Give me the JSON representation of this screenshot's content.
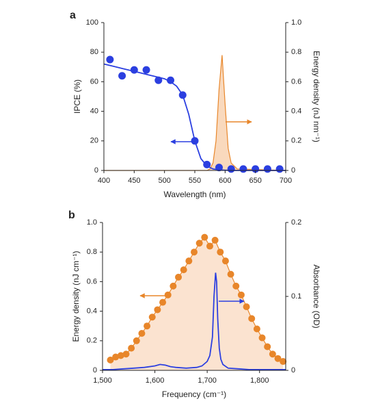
{
  "chart_data": [
    {
      "type": "combo",
      "panel_label": "a",
      "x_label": "Wavelength (nm)",
      "y_label": "IPCE (%)",
      "y2_label": "Energy density (nJ nm⁻¹)",
      "xlim": [
        400,
        700
      ],
      "xticks": [
        400,
        450,
        500,
        550,
        600,
        650,
        700
      ],
      "ylim": [
        0,
        100
      ],
      "yticks": [
        0,
        20,
        40,
        60,
        80,
        100
      ],
      "y2lim": [
        0,
        1
      ],
      "y2ticks": [
        0,
        {
          "value": 0.2,
          "label": "0.2"
        },
        {
          "value": 0.4,
          "label": "0.4"
        },
        {
          "value": 0.6,
          "label": "0.6"
        },
        {
          "value": 0.8,
          "label": "0.8"
        },
        {
          "value": 1,
          "label": "1.0"
        }
      ],
      "series": [
        {
          "kind": "area",
          "axis": "y2",
          "color": "#e8862a",
          "fill": "#f9d9bd",
          "x": [
            400,
            560,
            570,
            575,
            580,
            585,
            590,
            595,
            600,
            605,
            610,
            620,
            700
          ],
          "values": [
            0,
            0,
            0,
            0.01,
            0.05,
            0.2,
            0.55,
            0.78,
            0.45,
            0.15,
            0.05,
            0.01,
            0
          ]
        },
        {
          "kind": "line",
          "color": "#2b3fe0",
          "x": [
            400,
            410,
            420,
            430,
            440,
            450,
            460,
            470,
            480,
            490,
            500,
            510,
            520,
            530,
            540,
            550,
            560,
            570,
            580,
            590,
            600,
            610,
            620,
            630,
            640,
            650,
            660,
            670,
            680,
            690,
            700
          ],
          "values": [
            72,
            71,
            70,
            69,
            68,
            67,
            66,
            65,
            64,
            63,
            62,
            60,
            57,
            51,
            38,
            20,
            8,
            3,
            1,
            0.4,
            0.2,
            0,
            0,
            0,
            0,
            0,
            0,
            0,
            0,
            0,
            0
          ]
        },
        {
          "kind": "scatter",
          "color": "#2b3fe0",
          "x": [
            410,
            430,
            450,
            470,
            490,
            510,
            530,
            550,
            570,
            590,
            610,
            630,
            650,
            670,
            690
          ],
          "values": [
            75,
            64,
            68,
            68,
            61,
            61,
            51,
            20,
            4,
            2,
            1,
            1,
            1,
            1,
            1
          ]
        }
      ]
    },
    {
      "type": "combo",
      "panel_label": "b",
      "x_label": "Frequency (cm⁻¹)",
      "y_label": "Energy density (nJ cm⁻¹)",
      "y2_label": "Absorbance (OD)",
      "xlim": [
        1500,
        1850
      ],
      "xticks": [
        {
          "value": 1500,
          "label": "1,500"
        },
        {
          "value": 1600,
          "label": "1,600"
        },
        {
          "value": 1700,
          "label": "1,700"
        },
        {
          "value": 1800,
          "label": "1,800"
        }
      ],
      "ylim": [
        0,
        1
      ],
      "yticks": [
        0,
        {
          "value": 0.2,
          "label": "0.2"
        },
        {
          "value": 0.4,
          "label": "0.4"
        },
        {
          "value": 0.6,
          "label": "0.6"
        },
        {
          "value": 0.8,
          "label": "0.8"
        },
        {
          "value": 1,
          "label": "1.0"
        }
      ],
      "y2lim": [
        0,
        0.2
      ],
      "y2ticks": [
        0,
        0.1,
        0.2
      ],
      "series": [
        {
          "kind": "scatter-area",
          "color": "#e8862a",
          "fill": "#fbe3d0",
          "x": [
            1515,
            1525,
            1535,
            1545,
            1555,
            1565,
            1575,
            1585,
            1595,
            1605,
            1615,
            1625,
            1635,
            1645,
            1655,
            1665,
            1675,
            1685,
            1695,
            1705,
            1715,
            1725,
            1735,
            1745,
            1755,
            1765,
            1775,
            1785,
            1795,
            1805,
            1815,
            1825,
            1835,
            1845
          ],
          "values": [
            0.07,
            0.09,
            0.1,
            0.11,
            0.15,
            0.2,
            0.25,
            0.3,
            0.36,
            0.41,
            0.46,
            0.51,
            0.57,
            0.63,
            0.68,
            0.74,
            0.8,
            0.86,
            0.9,
            0.84,
            0.88,
            0.8,
            0.74,
            0.65,
            0.57,
            0.51,
            0.43,
            0.35,
            0.28,
            0.22,
            0.16,
            0.11,
            0.08,
            0.06
          ]
        },
        {
          "kind": "line",
          "axis": "y2",
          "color": "#2b3fe0",
          "x": [
            1500,
            1520,
            1540,
            1560,
            1580,
            1600,
            1610,
            1620,
            1630,
            1640,
            1660,
            1680,
            1690,
            1700,
            1705,
            1710,
            1713,
            1716,
            1718,
            1720,
            1723,
            1726,
            1730,
            1740,
            1760,
            1780,
            1800,
            1820,
            1840,
            1850
          ],
          "values": [
            0.001,
            0.001,
            0.002,
            0.003,
            0.004,
            0.006,
            0.008,
            0.007,
            0.005,
            0.004,
            0.003,
            0.004,
            0.006,
            0.012,
            0.02,
            0.045,
            0.1,
            0.132,
            0.12,
            0.07,
            0.03,
            0.015,
            0.008,
            0.003,
            0.002,
            0.001,
            0.001,
            0.001,
            0.001,
            0.001
          ]
        }
      ]
    }
  ]
}
